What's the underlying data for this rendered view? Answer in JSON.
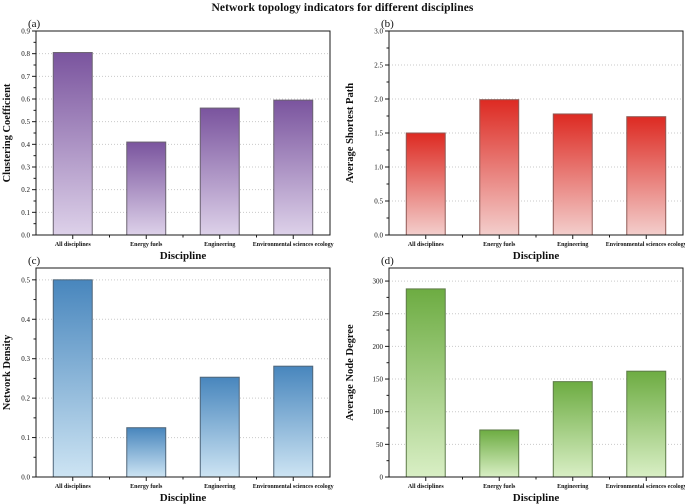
{
  "title": "Network topology indicators for different disciplines",
  "chart_data": [
    {
      "type": "bar",
      "panel_label": "(a)",
      "ylabel": "Clustering Coefficient",
      "xlabel": "Discipline",
      "categories": [
        "All disciplines",
        "Energy fuels",
        "Engineering",
        "Environmental sciences ecology"
      ],
      "values": [
        0.805,
        0.41,
        0.56,
        0.595
      ],
      "ylim": [
        0,
        0.9
      ],
      "ytick_step": 0.1,
      "ytick_max": 0.9,
      "ytick_decimals": 1,
      "grid": "dotted-horizontal",
      "legend_position": "none",
      "bar_color_top": "#7a549e",
      "bar_color_bottom": "#ddd1e9",
      "bar_stroke": "#6a6270"
    },
    {
      "type": "bar",
      "panel_label": "(b)",
      "ylabel": "Average Shortest Path",
      "xlabel": "Discipline",
      "categories": [
        "All disciplines",
        "Energy fuels",
        "Engineering",
        "Environmental sciences ecology"
      ],
      "values": [
        1.5,
        1.99,
        1.78,
        1.74
      ],
      "ylim": [
        0,
        3.0
      ],
      "ytick_step": 0.5,
      "ytick_max": 3.0,
      "ytick_decimals": 1,
      "grid": "dotted-horizontal",
      "legend_position": "none",
      "bar_color_top": "#dd2a22",
      "bar_color_bottom": "#f3cecc",
      "bar_stroke": "#8f5a55"
    },
    {
      "type": "bar",
      "panel_label": "(c)",
      "ylabel": "Network Density",
      "xlabel": "Discipline",
      "categories": [
        "All disciplines",
        "Energy fuels",
        "Engineering",
        "Environmental sciences ecology"
      ],
      "values": [
        0.5,
        0.125,
        0.253,
        0.281
      ],
      "ylim": [
        0,
        0.53
      ],
      "ytick_step": 0.1,
      "ytick_max": 0.5,
      "ytick_decimals": 1,
      "grid": "dotted-horizontal",
      "legend_position": "none",
      "bar_color_top": "#4886bd",
      "bar_color_bottom": "#cde4f3",
      "bar_stroke": "#4f6578"
    },
    {
      "type": "bar",
      "panel_label": "(d)",
      "ylabel": "Average Node Degree",
      "xlabel": "Discipline",
      "categories": [
        "All disciplines",
        "Energy fuels",
        "Engineering",
        "Environmental sciences ecology"
      ],
      "values": [
        288,
        72,
        146,
        162
      ],
      "ylim": [
        0,
        320
      ],
      "ytick_step": 50,
      "ytick_max": 300,
      "ytick_decimals": 0,
      "grid": "dotted-horizontal",
      "legend_position": "none",
      "bar_color_top": "#6dac42",
      "bar_color_bottom": "#d9efc5",
      "bar_stroke": "#5d7a48"
    }
  ]
}
